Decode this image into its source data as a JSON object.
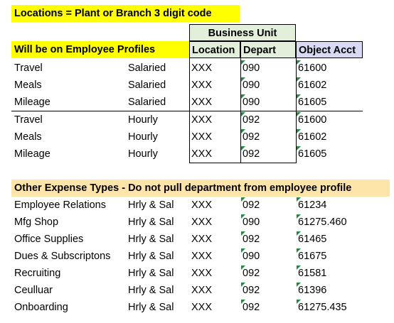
{
  "header": {
    "title": "Locations = Plant or Branch 3 digit code",
    "group": "Business Unit",
    "section": "Will be on Employee Profiles",
    "columns": [
      "Location",
      "Depart",
      "Object Acct"
    ]
  },
  "profile_rows": [
    [
      "Travel",
      "Salaried",
      "XXX",
      "090",
      "61600"
    ],
    [
      "Meals",
      "Salaried",
      "XXX",
      "090",
      "61602"
    ],
    [
      "Mileage",
      "Salaried",
      "XXX",
      "090",
      "61605"
    ],
    [
      "Travel",
      "Hourly",
      "XXX",
      "092",
      "61600"
    ],
    [
      "Meals",
      "Hourly",
      "XXX",
      "092",
      "61602"
    ],
    [
      "Mileage",
      "Hourly",
      "XXX",
      "092",
      "61605"
    ]
  ],
  "other": {
    "title": "Other Expense Types - Do not pull department from employee profile",
    "rows": [
      [
        "Employee Relations",
        "Hrly & Sal",
        "XXX",
        "092",
        "61234"
      ],
      [
        "Mfg Shop",
        "Hrly & Sal",
        "XXX",
        "090",
        "61275.460"
      ],
      [
        "Office Supplies",
        "Hrly & Sal",
        "XXX",
        "092",
        "61465"
      ],
      [
        "Dues & Subscriptons",
        "Hrly & Sal",
        "XXX",
        "090",
        "61675"
      ],
      [
        "Recruiting",
        "Hrly & Sal",
        "XXX",
        "092",
        "61581"
      ],
      [
        "Ceulluar",
        "Hrly & Sal",
        "XXX",
        "092",
        "61396"
      ],
      [
        "Onboarding",
        "Hrly & Sal",
        "XXX",
        "092",
        "61275.435"
      ]
    ]
  }
}
